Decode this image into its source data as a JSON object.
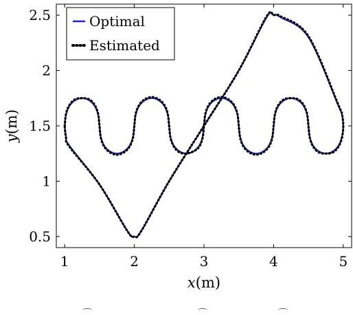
{
  "chart_data": {
    "type": "line",
    "xlabel": "x(m)",
    "ylabel": "y(m)",
    "xlim": [
      0.88,
      5.12
    ],
    "ylim": [
      0.4,
      2.6
    ],
    "xticks": [
      1,
      2,
      3,
      4,
      5
    ],
    "yticks": [
      0.5,
      1,
      1.5,
      2,
      2.5
    ],
    "xtick_labels": [
      "1",
      "2",
      "3",
      "4",
      "5"
    ],
    "ytick_labels": [
      "0.5",
      "1",
      "1.5",
      "2",
      "2.5"
    ],
    "grid": false,
    "legend_position": "top-left",
    "series": [
      {
        "name": "Optimal",
        "color": "#1f1fd1",
        "style": "solid",
        "x": [
          1.0,
          1.02,
          1.07,
          1.15,
          1.25,
          1.35,
          1.43,
          1.48,
          1.5,
          1.52,
          1.57,
          1.65,
          1.75,
          1.85,
          1.93,
          1.98,
          2.0,
          2.02,
          2.07,
          2.15,
          2.25,
          2.35,
          2.43,
          2.48,
          2.5,
          2.52,
          2.57,
          2.65,
          2.75,
          2.85,
          2.93,
          2.98,
          3.0,
          3.02,
          3.07,
          3.15,
          3.25,
          3.35,
          3.43,
          3.48,
          3.5,
          3.52,
          3.57,
          3.65,
          3.75,
          3.85,
          3.93,
          3.98,
          4.0,
          4.02,
          4.07,
          4.15,
          4.25,
          4.35,
          4.43,
          4.48,
          4.5,
          4.52,
          4.57,
          4.65,
          4.75,
          4.85,
          4.93,
          4.98,
          5.0,
          4.98,
          4.93,
          4.5,
          4.1,
          4.0,
          3.9,
          3.5,
          3.0,
          2.5,
          2.1,
          2.0,
          1.9,
          1.5,
          1.07,
          1.02,
          1.0
        ],
        "y": [
          1.5,
          1.6,
          1.68,
          1.73,
          1.75,
          1.73,
          1.68,
          1.6,
          1.5,
          1.4,
          1.32,
          1.27,
          1.25,
          1.27,
          1.32,
          1.4,
          1.5,
          1.6,
          1.68,
          1.73,
          1.75,
          1.73,
          1.68,
          1.6,
          1.5,
          1.4,
          1.32,
          1.27,
          1.25,
          1.27,
          1.32,
          1.4,
          1.5,
          1.6,
          1.68,
          1.73,
          1.75,
          1.73,
          1.68,
          1.6,
          1.5,
          1.4,
          1.32,
          1.27,
          1.25,
          1.27,
          1.32,
          1.4,
          1.5,
          1.6,
          1.68,
          1.73,
          1.75,
          1.73,
          1.68,
          1.6,
          1.5,
          1.4,
          1.32,
          1.27,
          1.25,
          1.27,
          1.32,
          1.4,
          1.5,
          1.6,
          1.68,
          2.3,
          2.48,
          2.5,
          2.48,
          2.0,
          1.5,
          1.0,
          0.55,
          0.5,
          0.55,
          0.97,
          1.32,
          1.4,
          1.5
        ]
      },
      {
        "name": "Estimated",
        "color": "#000000",
        "style": "dotted",
        "x": [
          1.0,
          1.02,
          1.07,
          1.15,
          1.25,
          1.35,
          1.43,
          1.48,
          1.5,
          1.52,
          1.57,
          1.65,
          1.75,
          1.85,
          1.93,
          1.98,
          2.0,
          2.02,
          2.07,
          2.15,
          2.25,
          2.35,
          2.43,
          2.48,
          2.5,
          2.52,
          2.57,
          2.65,
          2.75,
          2.85,
          2.93,
          2.98,
          3.0,
          3.02,
          3.07,
          3.15,
          3.25,
          3.35,
          3.43,
          3.48,
          3.5,
          3.52,
          3.57,
          3.65,
          3.75,
          3.85,
          3.93,
          3.98,
          4.0,
          4.02,
          4.07,
          4.15,
          4.25,
          4.35,
          4.43,
          4.48,
          4.5,
          4.52,
          4.57,
          4.65,
          4.75,
          4.85,
          4.93,
          4.98,
          5.0,
          4.98,
          4.93,
          4.5,
          4.1,
          4.0,
          3.9,
          3.5,
          3.0,
          2.5,
          2.1,
          2.0,
          1.9,
          1.5,
          1.07,
          1.02,
          1.0
        ],
        "y": [
          1.5,
          1.61,
          1.69,
          1.74,
          1.75,
          1.74,
          1.69,
          1.61,
          1.5,
          1.39,
          1.31,
          1.26,
          1.24,
          1.26,
          1.31,
          1.39,
          1.5,
          1.61,
          1.69,
          1.74,
          1.76,
          1.74,
          1.69,
          1.61,
          1.5,
          1.39,
          1.31,
          1.26,
          1.25,
          1.27,
          1.31,
          1.39,
          1.5,
          1.61,
          1.69,
          1.74,
          1.76,
          1.74,
          1.69,
          1.61,
          1.5,
          1.39,
          1.31,
          1.26,
          1.24,
          1.26,
          1.31,
          1.39,
          1.5,
          1.61,
          1.69,
          1.74,
          1.75,
          1.74,
          1.69,
          1.61,
          1.5,
          1.39,
          1.31,
          1.26,
          1.25,
          1.26,
          1.31,
          1.39,
          1.5,
          1.61,
          1.69,
          2.31,
          2.49,
          2.5,
          2.49,
          2.0,
          1.5,
          1.0,
          0.55,
          0.5,
          0.55,
          0.97,
          1.31,
          1.39,
          1.5
        ]
      }
    ]
  }
}
